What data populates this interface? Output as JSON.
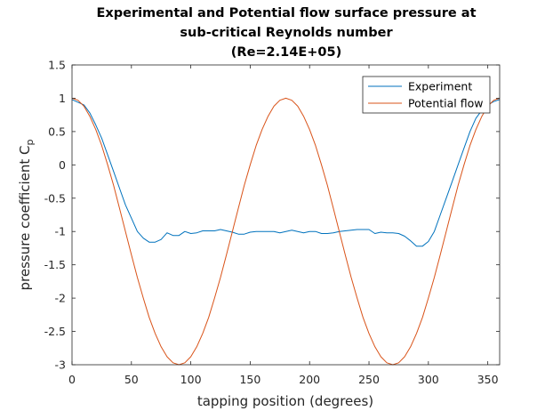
{
  "chart_data": {
    "type": "line",
    "title": [
      "Experimental and Potential flow surface pressure at",
      "sub-critical Reynolds number",
      "(Re=2.14E+05)"
    ],
    "xlabel": "tapping position (degrees)",
    "ylabel": "pressure coefficient C",
    "ylabel_subscript": "p",
    "xlim": [
      0,
      360
    ],
    "ylim": [
      -3,
      1.5
    ],
    "xticks": [
      0,
      50,
      100,
      150,
      200,
      250,
      300,
      350
    ],
    "yticks": [
      1.5,
      1,
      0.5,
      0,
      -0.5,
      -1,
      -1.5,
      -2,
      -2.5,
      -3
    ],
    "ytick_labels": [
      "1.5",
      "1",
      "0.5",
      "0",
      "-0.5",
      "-1",
      "-1.5",
      "-2",
      "-2.5",
      "-3"
    ],
    "grid": false,
    "legend_position": "top-right",
    "colors": {
      "experiment": "#0072BD",
      "potential": "#D95319"
    },
    "series": [
      {
        "name": "Experiment",
        "x": [
          0,
          10,
          15,
          20,
          25,
          30,
          35,
          40,
          45,
          50,
          55,
          60,
          65,
          70,
          75,
          80,
          85,
          90,
          95,
          100,
          105,
          110,
          115,
          120,
          125,
          130,
          135,
          140,
          145,
          150,
          155,
          160,
          165,
          170,
          175,
          180,
          185,
          190,
          195,
          200,
          205,
          210,
          215,
          220,
          225,
          230,
          235,
          240,
          245,
          250,
          255,
          260,
          265,
          270,
          275,
          280,
          285,
          290,
          295,
          300,
          305,
          310,
          315,
          320,
          325,
          330,
          335,
          340,
          345,
          350,
          355,
          360
        ],
        "y": [
          0.98,
          0.9,
          0.78,
          0.6,
          0.4,
          0.15,
          -0.1,
          -0.35,
          -0.6,
          -0.8,
          -1.0,
          -1.1,
          -1.16,
          -1.16,
          -1.12,
          -1.02,
          -1.06,
          -1.06,
          -1.0,
          -1.03,
          -1.02,
          -0.99,
          -0.99,
          -0.99,
          -0.97,
          -0.99,
          -1.01,
          -1.04,
          -1.04,
          -1.01,
          -1.0,
          -1.0,
          -1.0,
          -1.0,
          -1.02,
          -1.0,
          -0.98,
          -1.0,
          -1.02,
          -1.0,
          -1.0,
          -1.03,
          -1.03,
          -1.02,
          -1.0,
          -0.99,
          -0.98,
          -0.97,
          -0.97,
          -0.97,
          -1.03,
          -1.01,
          -1.02,
          -1.02,
          -1.03,
          -1.07,
          -1.14,
          -1.22,
          -1.22,
          -1.15,
          -1.0,
          -0.75,
          -0.5,
          -0.25,
          0.0,
          0.25,
          0.5,
          0.7,
          0.82,
          0.9,
          0.95,
          0.98
        ]
      },
      {
        "name": "Potential flow",
        "x": [
          0,
          5,
          10,
          15,
          20,
          25,
          30,
          35,
          40,
          45,
          50,
          55,
          60,
          65,
          70,
          75,
          80,
          85,
          90,
          95,
          100,
          105,
          110,
          115,
          120,
          125,
          130,
          135,
          140,
          145,
          150,
          155,
          160,
          165,
          170,
          175,
          180,
          185,
          190,
          195,
          200,
          205,
          210,
          215,
          220,
          225,
          230,
          235,
          240,
          245,
          250,
          255,
          260,
          265,
          270,
          275,
          280,
          285,
          290,
          295,
          300,
          305,
          310,
          315,
          320,
          325,
          330,
          335,
          340,
          345,
          350,
          355,
          360
        ],
        "y": [
          1.0,
          0.97,
          0.88,
          0.73,
          0.53,
          0.29,
          0.0,
          -0.31,
          -0.65,
          -1.0,
          -1.35,
          -1.69,
          -2.0,
          -2.29,
          -2.53,
          -2.73,
          -2.88,
          -2.97,
          -3.0,
          -2.97,
          -2.88,
          -2.73,
          -2.53,
          -2.29,
          -2.0,
          -1.69,
          -1.35,
          -1.0,
          -0.65,
          -0.31,
          0.0,
          0.29,
          0.53,
          0.73,
          0.88,
          0.97,
          1.0,
          0.97,
          0.88,
          0.73,
          0.53,
          0.29,
          0.0,
          -0.31,
          -0.65,
          -1.0,
          -1.35,
          -1.69,
          -2.0,
          -2.29,
          -2.53,
          -2.73,
          -2.88,
          -2.97,
          -3.0,
          -2.97,
          -2.88,
          -2.73,
          -2.53,
          -2.29,
          -2.0,
          -1.69,
          -1.35,
          -1.0,
          -0.65,
          -0.31,
          0.0,
          0.29,
          0.53,
          0.73,
          0.88,
          0.97,
          1.0
        ]
      }
    ]
  }
}
